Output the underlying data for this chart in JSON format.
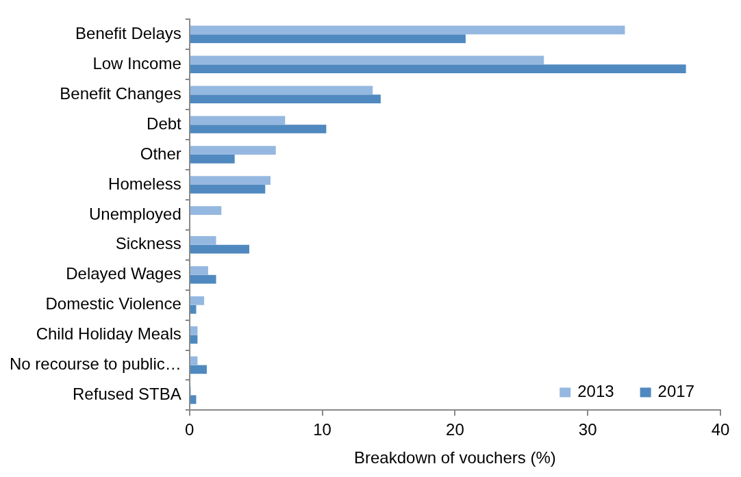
{
  "chart_data": {
    "type": "bar",
    "orientation": "horizontal",
    "xlabel": "Breakdown of vouchers (%)",
    "categories": [
      "Benefit Delays",
      "Low Income",
      "Benefit Changes",
      "Debt",
      "Other",
      "Homeless",
      "Unemployed",
      "Sickness",
      "Delayed Wages",
      "Domestic Violence",
      "Child Holiday Meals",
      "No recourse to public…",
      "Refused STBA"
    ],
    "series": [
      {
        "name": "2013",
        "color": "#95b8e0",
        "values": [
          32.8,
          26.7,
          13.8,
          7.2,
          6.5,
          6.1,
          2.4,
          2.0,
          1.4,
          1.1,
          0.6,
          0.6,
          0.1
        ]
      },
      {
        "name": "2017",
        "color": "#4f89bf",
        "values": [
          20.8,
          37.4,
          14.4,
          10.3,
          3.4,
          5.7,
          0,
          4.5,
          2.0,
          0.5,
          0.6,
          1.3,
          0.5
        ]
      }
    ],
    "xlim": [
      0,
      40
    ],
    "xticks": [
      0,
      10,
      20,
      30,
      40
    ],
    "grid": false,
    "legend": "bottom right"
  }
}
